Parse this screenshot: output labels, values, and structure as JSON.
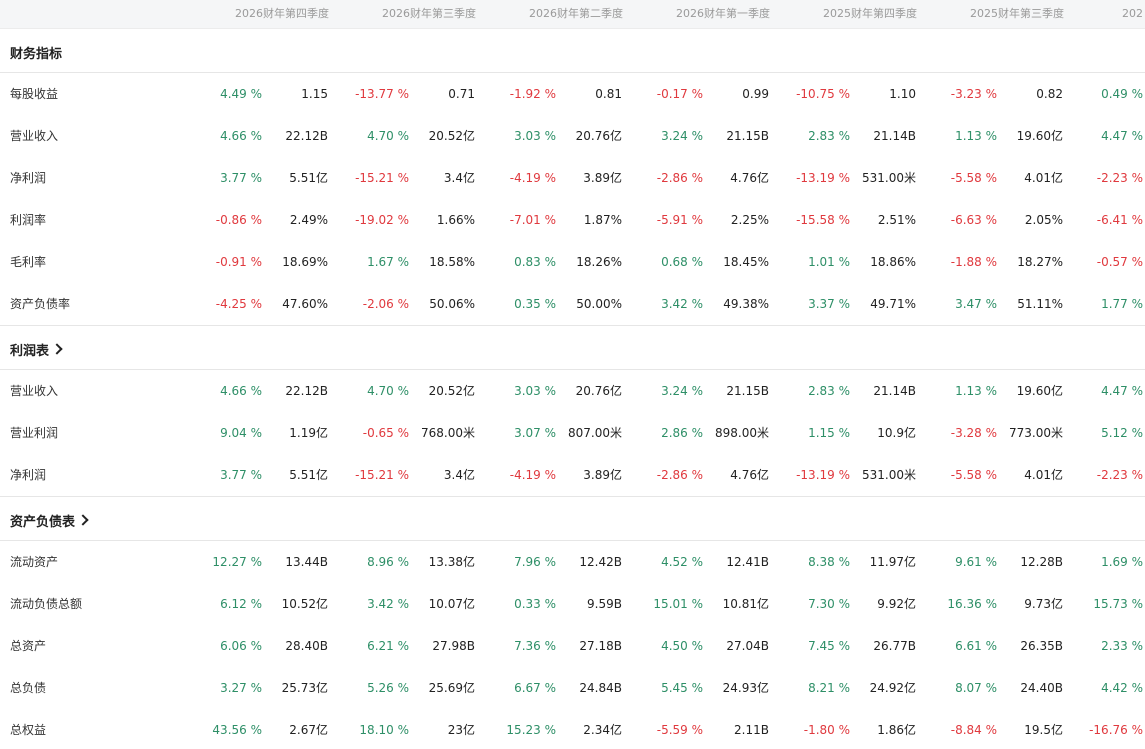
{
  "colors": {
    "positive": "#2e8f67",
    "negative": "#e0393e"
  },
  "header": {
    "periods": [
      "2026财年第四季度",
      "2026财年第三季度",
      "2026财年第二季度",
      "2026财年第一季度",
      "2025财年第四季度",
      "2025财年第三季度",
      "202"
    ]
  },
  "sections": [
    {
      "title": "财务指标",
      "link": false,
      "rows": [
        {
          "label": "每股收益",
          "cells": [
            {
              "pct": "4.49 %",
              "val": "1.15",
              "dir": "pos"
            },
            {
              "pct": "-13.77 %",
              "val": "0.71",
              "dir": "neg"
            },
            {
              "pct": "-1.92 %",
              "val": "0.81",
              "dir": "neg"
            },
            {
              "pct": "-0.17 %",
              "val": "0.99",
              "dir": "neg"
            },
            {
              "pct": "-10.75 %",
              "val": "1.10",
              "dir": "neg"
            },
            {
              "pct": "-3.23 %",
              "val": "0.82",
              "dir": "neg"
            },
            {
              "pct": "0.49 %",
              "val": "",
              "dir": "pos"
            }
          ]
        },
        {
          "label": "营业收入",
          "cells": [
            {
              "pct": "4.66 %",
              "val": "22.12B",
              "dir": "pos"
            },
            {
              "pct": "4.70 %",
              "val": "20.52亿",
              "dir": "pos"
            },
            {
              "pct": "3.03 %",
              "val": "20.76亿",
              "dir": "pos"
            },
            {
              "pct": "3.24 %",
              "val": "21.15B",
              "dir": "pos"
            },
            {
              "pct": "2.83 %",
              "val": "21.14B",
              "dir": "pos"
            },
            {
              "pct": "1.13 %",
              "val": "19.60亿",
              "dir": "pos"
            },
            {
              "pct": "4.47 %",
              "val": "",
              "dir": "pos"
            }
          ]
        },
        {
          "label": "净利润",
          "cells": [
            {
              "pct": "3.77 %",
              "val": "5.51亿",
              "dir": "pos"
            },
            {
              "pct": "-15.21 %",
              "val": "3.4亿",
              "dir": "neg"
            },
            {
              "pct": "-4.19 %",
              "val": "3.89亿",
              "dir": "neg"
            },
            {
              "pct": "-2.86 %",
              "val": "4.76亿",
              "dir": "neg"
            },
            {
              "pct": "-13.19 %",
              "val": "531.00米",
              "dir": "neg"
            },
            {
              "pct": "-5.58 %",
              "val": "4.01亿",
              "dir": "neg"
            },
            {
              "pct": "-2.23 %",
              "val": "",
              "dir": "neg"
            }
          ]
        },
        {
          "label": "利润率",
          "cells": [
            {
              "pct": "-0.86 %",
              "val": "2.49%",
              "dir": "neg"
            },
            {
              "pct": "-19.02 %",
              "val": "1.66%",
              "dir": "neg"
            },
            {
              "pct": "-7.01 %",
              "val": "1.87%",
              "dir": "neg"
            },
            {
              "pct": "-5.91 %",
              "val": "2.25%",
              "dir": "neg"
            },
            {
              "pct": "-15.58 %",
              "val": "2.51%",
              "dir": "neg"
            },
            {
              "pct": "-6.63 %",
              "val": "2.05%",
              "dir": "neg"
            },
            {
              "pct": "-6.41 %",
              "val": "",
              "dir": "neg"
            }
          ]
        },
        {
          "label": "毛利率",
          "cells": [
            {
              "pct": "-0.91 %",
              "val": "18.69%",
              "dir": "neg"
            },
            {
              "pct": "1.67 %",
              "val": "18.58%",
              "dir": "pos"
            },
            {
              "pct": "0.83 %",
              "val": "18.26%",
              "dir": "pos"
            },
            {
              "pct": "0.68 %",
              "val": "18.45%",
              "dir": "pos"
            },
            {
              "pct": "1.01 %",
              "val": "18.86%",
              "dir": "pos"
            },
            {
              "pct": "-1.88 %",
              "val": "18.27%",
              "dir": "neg"
            },
            {
              "pct": "-0.57 %",
              "val": "",
              "dir": "neg"
            }
          ]
        },
        {
          "label": "资产负债率",
          "cells": [
            {
              "pct": "-4.25 %",
              "val": "47.60%",
              "dir": "neg"
            },
            {
              "pct": "-2.06 %",
              "val": "50.06%",
              "dir": "neg"
            },
            {
              "pct": "0.35 %",
              "val": "50.00%",
              "dir": "pos"
            },
            {
              "pct": "3.42 %",
              "val": "49.38%",
              "dir": "pos"
            },
            {
              "pct": "3.37 %",
              "val": "49.71%",
              "dir": "pos"
            },
            {
              "pct": "3.47 %",
              "val": "51.11%",
              "dir": "pos"
            },
            {
              "pct": "1.77 %",
              "val": "",
              "dir": "pos"
            }
          ]
        }
      ]
    },
    {
      "title": "利润表",
      "link": true,
      "rows": [
        {
          "label": "营业收入",
          "cells": [
            {
              "pct": "4.66 %",
              "val": "22.12B",
              "dir": "pos"
            },
            {
              "pct": "4.70 %",
              "val": "20.52亿",
              "dir": "pos"
            },
            {
              "pct": "3.03 %",
              "val": "20.76亿",
              "dir": "pos"
            },
            {
              "pct": "3.24 %",
              "val": "21.15B",
              "dir": "pos"
            },
            {
              "pct": "2.83 %",
              "val": "21.14B",
              "dir": "pos"
            },
            {
              "pct": "1.13 %",
              "val": "19.60亿",
              "dir": "pos"
            },
            {
              "pct": "4.47 %",
              "val": "",
              "dir": "pos"
            }
          ]
        },
        {
          "label": "营业利润",
          "cells": [
            {
              "pct": "9.04 %",
              "val": "1.19亿",
              "dir": "pos"
            },
            {
              "pct": "-0.65 %",
              "val": "768.00米",
              "dir": "neg"
            },
            {
              "pct": "3.07 %",
              "val": "807.00米",
              "dir": "pos"
            },
            {
              "pct": "2.86 %",
              "val": "898.00米",
              "dir": "pos"
            },
            {
              "pct": "1.15 %",
              "val": "10.9亿",
              "dir": "pos"
            },
            {
              "pct": "-3.28 %",
              "val": "773.00米",
              "dir": "neg"
            },
            {
              "pct": "5.12 %",
              "val": "",
              "dir": "pos"
            }
          ]
        },
        {
          "label": "净利润",
          "cells": [
            {
              "pct": "3.77 %",
              "val": "5.51亿",
              "dir": "pos"
            },
            {
              "pct": "-15.21 %",
              "val": "3.4亿",
              "dir": "neg"
            },
            {
              "pct": "-4.19 %",
              "val": "3.89亿",
              "dir": "neg"
            },
            {
              "pct": "-2.86 %",
              "val": "4.76亿",
              "dir": "neg"
            },
            {
              "pct": "-13.19 %",
              "val": "531.00米",
              "dir": "neg"
            },
            {
              "pct": "-5.58 %",
              "val": "4.01亿",
              "dir": "neg"
            },
            {
              "pct": "-2.23 %",
              "val": "",
              "dir": "neg"
            }
          ]
        }
      ]
    },
    {
      "title": "资产负债表",
      "link": true,
      "rows": [
        {
          "label": "流动资产",
          "cells": [
            {
              "pct": "12.27 %",
              "val": "13.44B",
              "dir": "pos"
            },
            {
              "pct": "8.96 %",
              "val": "13.38亿",
              "dir": "pos"
            },
            {
              "pct": "7.96 %",
              "val": "12.42B",
              "dir": "pos"
            },
            {
              "pct": "4.52 %",
              "val": "12.41B",
              "dir": "pos"
            },
            {
              "pct": "8.38 %",
              "val": "11.97亿",
              "dir": "pos"
            },
            {
              "pct": "9.61 %",
              "val": "12.28B",
              "dir": "pos"
            },
            {
              "pct": "1.69 %",
              "val": "",
              "dir": "pos"
            }
          ]
        },
        {
          "label": "流动负债总额",
          "cells": [
            {
              "pct": "6.12 %",
              "val": "10.52亿",
              "dir": "pos"
            },
            {
              "pct": "3.42 %",
              "val": "10.07亿",
              "dir": "pos"
            },
            {
              "pct": "0.33 %",
              "val": "9.59B",
              "dir": "pos"
            },
            {
              "pct": "15.01 %",
              "val": "10.81亿",
              "dir": "pos"
            },
            {
              "pct": "7.30 %",
              "val": "9.92亿",
              "dir": "pos"
            },
            {
              "pct": "16.36 %",
              "val": "9.73亿",
              "dir": "pos"
            },
            {
              "pct": "15.73 %",
              "val": "",
              "dir": "pos"
            }
          ]
        },
        {
          "label": "总资产",
          "cells": [
            {
              "pct": "6.06 %",
              "val": "28.40B",
              "dir": "pos"
            },
            {
              "pct": "6.21 %",
              "val": "27.98B",
              "dir": "pos"
            },
            {
              "pct": "7.36 %",
              "val": "27.18B",
              "dir": "pos"
            },
            {
              "pct": "4.50 %",
              "val": "27.04B",
              "dir": "pos"
            },
            {
              "pct": "7.45 %",
              "val": "26.77B",
              "dir": "pos"
            },
            {
              "pct": "6.61 %",
              "val": "26.35B",
              "dir": "pos"
            },
            {
              "pct": "2.33 %",
              "val": "",
              "dir": "pos"
            }
          ]
        },
        {
          "label": "总负债",
          "cells": [
            {
              "pct": "3.27 %",
              "val": "25.73亿",
              "dir": "pos"
            },
            {
              "pct": "5.26 %",
              "val": "25.69亿",
              "dir": "pos"
            },
            {
              "pct": "6.67 %",
              "val": "24.84B",
              "dir": "pos"
            },
            {
              "pct": "5.45 %",
              "val": "24.93亿",
              "dir": "pos"
            },
            {
              "pct": "8.21 %",
              "val": "24.92亿",
              "dir": "pos"
            },
            {
              "pct": "8.07 %",
              "val": "24.40B",
              "dir": "pos"
            },
            {
              "pct": "4.42 %",
              "val": "",
              "dir": "pos"
            }
          ]
        },
        {
          "label": "总权益",
          "cells": [
            {
              "pct": "43.56 %",
              "val": "2.67亿",
              "dir": "pos"
            },
            {
              "pct": "18.10 %",
              "val": "23亿",
              "dir": "pos"
            },
            {
              "pct": "15.23 %",
              "val": "2.34亿",
              "dir": "pos"
            },
            {
              "pct": "-5.59 %",
              "val": "2.11B",
              "dir": "neg"
            },
            {
              "pct": "-1.80 %",
              "val": "1.86亿",
              "dir": "neg"
            },
            {
              "pct": "-8.84 %",
              "val": "19.5亿",
              "dir": "neg"
            },
            {
              "pct": "-16.76 %",
              "val": "",
              "dir": "neg"
            }
          ]
        }
      ]
    }
  ]
}
